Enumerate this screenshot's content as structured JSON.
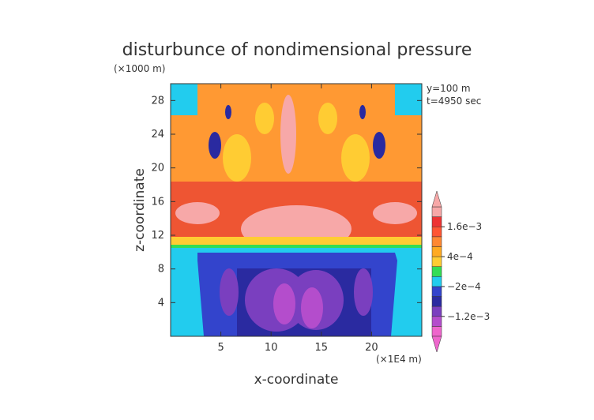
{
  "chart_data": {
    "type": "heatmap",
    "title": "disturbunce of nondimensional pressure",
    "xlabel": "x-coordinate",
    "ylabel": "z-coordinate",
    "x_unit": "(×1E4 m)",
    "y_unit": "(×1000 m)",
    "xlim": [
      0,
      25
    ],
    "ylim": [
      0,
      30
    ],
    "x_ticks": [
      5,
      10,
      15,
      20
    ],
    "y_ticks": [
      4,
      8,
      12,
      16,
      20,
      24,
      28
    ],
    "annotations": [
      "y=100 m",
      "t=4950 sec"
    ],
    "colorbar": {
      "labels": [
        "1.6e−3",
        "4e−4",
        "−2e−4",
        "−1.2e−3"
      ],
      "colors": [
        "#ee66cc",
        "#b44dcc",
        "#7a3fbf",
        "#2a2aa0",
        "#3344cc",
        "#22ccee",
        "#33dd55",
        "#ffcc33",
        "#ffaa22",
        "#ff8833",
        "#ff5533",
        "#ee3333",
        "#f7a8a8"
      ]
    }
  }
}
